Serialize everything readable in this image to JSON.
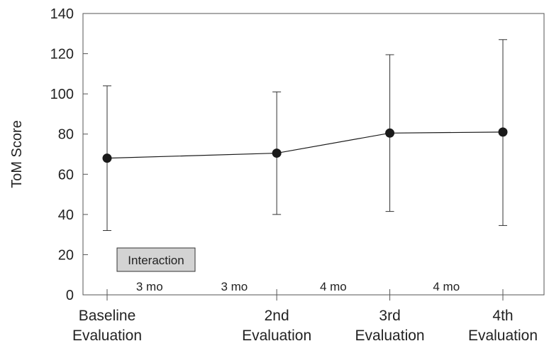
{
  "chart_data": {
    "type": "line",
    "ylabel": "ToM Score",
    "xlabel": "",
    "ylim": [
      0,
      140
    ],
    "yticks": [
      "0",
      "20",
      "40",
      "60",
      "80",
      "100",
      "120",
      "140"
    ],
    "categories": [
      [
        "Baseline",
        "Evaluation"
      ],
      [
        "2nd",
        "Evaluation"
      ],
      [
        "3rd",
        "Evaluation"
      ],
      [
        "4th",
        "Evaluation"
      ]
    ],
    "x_months": [
      0,
      6,
      10,
      14
    ],
    "series": [
      {
        "values": [
          68,
          70.5,
          80.5,
          81
        ],
        "error_low": [
          32,
          40,
          41.5,
          34.5
        ],
        "error_high": [
          104,
          101,
          119.5,
          127
        ]
      }
    ],
    "interval_labels": [
      {
        "text": "3 mo",
        "month": 1.5
      },
      {
        "text": "3 mo",
        "month": 4.5
      },
      {
        "text": "4 mo",
        "month": 8
      },
      {
        "text": "4 mo",
        "month": 12
      }
    ],
    "shaded_label": "Interaction",
    "grid": false,
    "colors": {
      "marker": "#1a1a1a",
      "line": "#1a1a1a",
      "axis": "#555555",
      "box_fill": "#d3d3d3"
    }
  }
}
